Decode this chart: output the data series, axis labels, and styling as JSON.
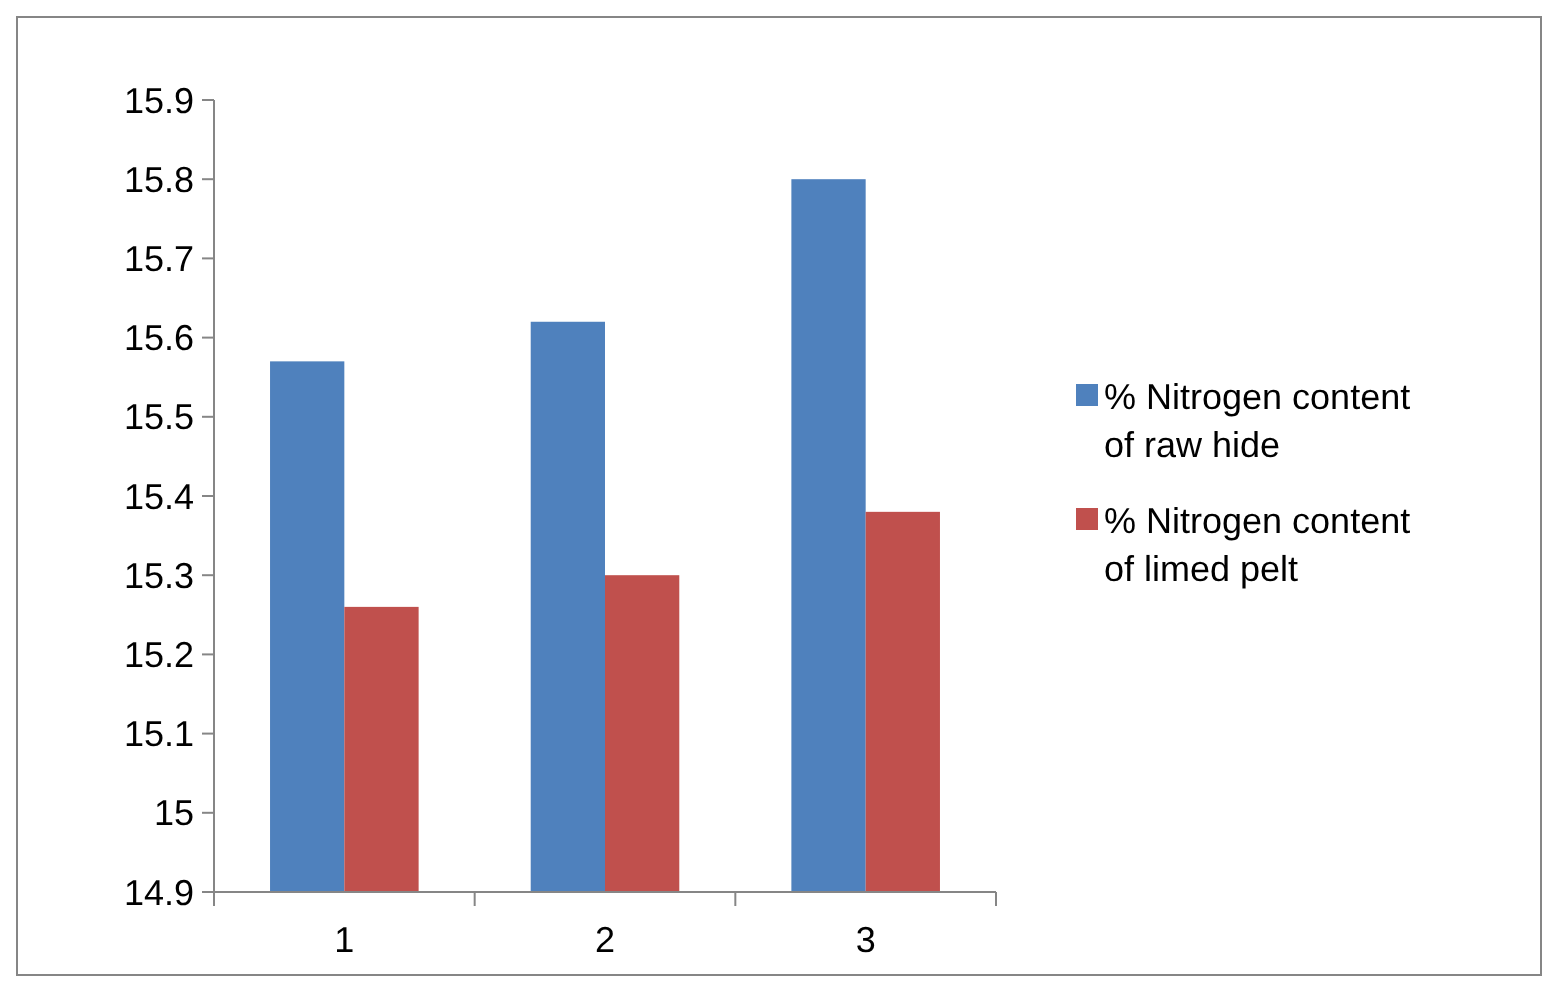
{
  "chart_data": {
    "type": "bar",
    "categories": [
      "1",
      "2",
      "3"
    ],
    "ylim": [
      14.9,
      15.9
    ],
    "yticks": [
      14.9,
      15,
      15.1,
      15.2,
      15.3,
      15.4,
      15.5,
      15.6,
      15.7,
      15.8,
      15.9
    ],
    "legend": "right",
    "series": [
      {
        "name": "% Nitrogen content of raw hide",
        "color": "#4f81bd",
        "values": [
          15.57,
          15.62,
          15.8
        ]
      },
      {
        "name": "% Nitrogen content of limed pelt",
        "color": "#c0504d",
        "values": [
          15.26,
          15.3,
          15.38
        ]
      }
    ]
  }
}
